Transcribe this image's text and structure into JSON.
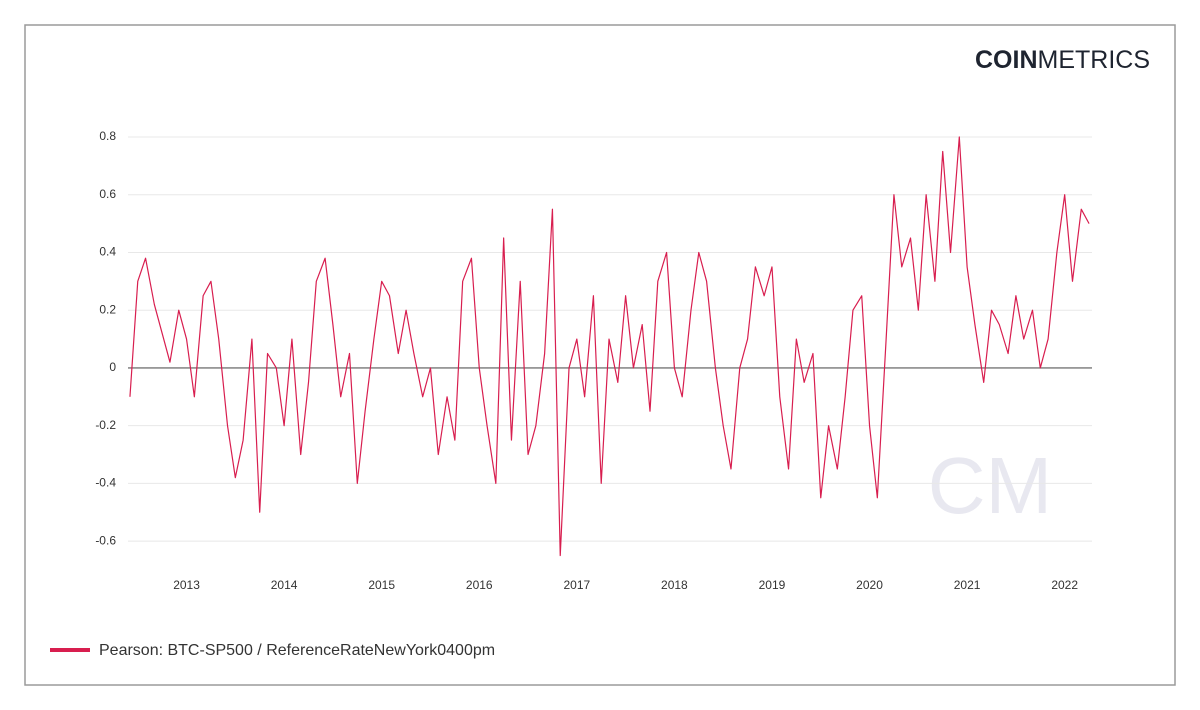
{
  "chart_data": {
    "type": "line",
    "logo": [
      "COIN",
      "METRICS"
    ],
    "watermark": "CM",
    "x": [
      2012.42,
      2012.5,
      2012.58,
      2012.67,
      2012.75,
      2012.83,
      2012.92,
      2013.0,
      2013.08,
      2013.17,
      2013.25,
      2013.33,
      2013.42,
      2013.5,
      2013.58,
      2013.67,
      2013.75,
      2013.83,
      2013.92,
      2014.0,
      2014.08,
      2014.17,
      2014.25,
      2014.33,
      2014.42,
      2014.5,
      2014.58,
      2014.67,
      2014.75,
      2014.83,
      2014.92,
      2015.0,
      2015.08,
      2015.17,
      2015.25,
      2015.33,
      2015.42,
      2015.5,
      2015.58,
      2015.67,
      2015.75,
      2015.83,
      2015.92,
      2016.0,
      2016.08,
      2016.17,
      2016.25,
      2016.33,
      2016.42,
      2016.5,
      2016.58,
      2016.67,
      2016.75,
      2016.83,
      2016.92,
      2017.0,
      2017.08,
      2017.17,
      2017.25,
      2017.33,
      2017.42,
      2017.5,
      2017.58,
      2017.67,
      2017.75,
      2017.83,
      2017.92,
      2018.0,
      2018.08,
      2018.17,
      2018.25,
      2018.33,
      2018.42,
      2018.5,
      2018.58,
      2018.67,
      2018.75,
      2018.83,
      2018.92,
      2019.0,
      2019.08,
      2019.17,
      2019.25,
      2019.33,
      2019.42,
      2019.5,
      2019.58,
      2019.67,
      2019.75,
      2019.83,
      2019.92,
      2020.0,
      2020.08,
      2020.17,
      2020.25,
      2020.33,
      2020.42,
      2020.5,
      2020.58,
      2020.67,
      2020.75,
      2020.83,
      2020.92,
      2021.0,
      2021.08,
      2021.17,
      2021.25,
      2021.33,
      2021.42,
      2021.5,
      2021.58,
      2021.67,
      2021.75,
      2021.83,
      2021.92,
      2022.0,
      2022.08,
      2022.17,
      2022.25
    ],
    "series": [
      {
        "name": "Pearson: BTC-SP500 / ReferenceRateNewYork0400pm",
        "color": "#d81e4f",
        "values": [
          -0.1,
          0.3,
          0.38,
          0.22,
          0.12,
          0.02,
          0.2,
          0.1,
          -0.1,
          0.25,
          0.3,
          0.1,
          -0.2,
          -0.38,
          -0.25,
          0.1,
          -0.5,
          0.05,
          0.0,
          -0.2,
          0.1,
          -0.3,
          -0.05,
          0.3,
          0.38,
          0.15,
          -0.1,
          0.05,
          -0.4,
          -0.15,
          0.1,
          0.3,
          0.25,
          0.05,
          0.2,
          0.05,
          -0.1,
          0.0,
          -0.3,
          -0.1,
          -0.25,
          0.3,
          0.38,
          0.0,
          -0.2,
          -0.4,
          0.45,
          -0.25,
          0.3,
          -0.3,
          -0.2,
          0.05,
          0.55,
          -0.65,
          0.0,
          0.1,
          -0.1,
          0.25,
          -0.4,
          0.1,
          -0.05,
          0.25,
          0.0,
          0.15,
          -0.15,
          0.3,
          0.4,
          0.0,
          -0.1,
          0.2,
          0.4,
          0.3,
          0.0,
          -0.2,
          -0.35,
          0.0,
          0.1,
          0.35,
          0.25,
          0.35,
          -0.1,
          -0.35,
          0.1,
          -0.05,
          0.05,
          -0.45,
          -0.2,
          -0.35,
          -0.1,
          0.2,
          0.25,
          -0.2,
          -0.45,
          0.1,
          0.6,
          0.35,
          0.45,
          0.2,
          0.6,
          0.3,
          0.75,
          0.4,
          0.8,
          0.35,
          0.15,
          -0.05,
          0.2,
          0.15,
          0.05,
          0.25,
          0.1,
          0.2,
          0.0,
          0.1,
          0.4,
          0.6,
          0.3,
          0.55,
          0.5
        ]
      }
    ],
    "xlim": [
      2012.4,
      2022.28
    ],
    "xticks": [
      2013,
      2014,
      2015,
      2016,
      2017,
      2018,
      2019,
      2020,
      2021,
      2022
    ],
    "ylim": [
      -0.7,
      0.8
    ],
    "yticks": [
      0.8,
      0.6,
      0.4,
      0.2,
      0,
      -0.2,
      -0.4,
      -0.6
    ],
    "grid": true
  }
}
